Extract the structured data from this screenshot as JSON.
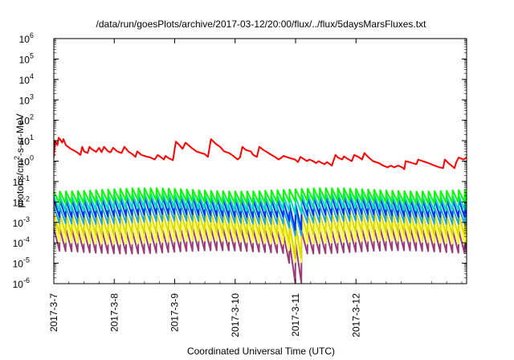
{
  "chart_data": {
    "type": "line",
    "title": "/data/run/goesPlots/archive/2017-03-12/20:00/flux/../flux/5daysMarsFluxes.txt",
    "xlabel": "Coordinated Universal Time (UTC)",
    "ylabel": {
      "prefix": "protons/cm",
      "sup": "2",
      "suffix": "-s-sr-MeV"
    },
    "y_scale": "log",
    "ylim": [
      1e-06,
      1000000.0
    ],
    "y_ticks": [
      {
        "value": -6,
        "base": "10",
        "exp": "-6"
      },
      {
        "value": -5,
        "base": "10",
        "exp": "-5"
      },
      {
        "value": -4,
        "base": "10",
        "exp": "-4"
      },
      {
        "value": -3,
        "base": "10",
        "exp": "-3"
      },
      {
        "value": -2,
        "base": "10",
        "exp": "-2"
      },
      {
        "value": -1,
        "base": "10",
        "exp": "-1"
      },
      {
        "value": 0,
        "base": "10",
        "exp": "0"
      },
      {
        "value": 1,
        "base": "10",
        "exp": "1"
      },
      {
        "value": 2,
        "base": "10",
        "exp": "2"
      },
      {
        "value": 3,
        "base": "10",
        "exp": "3"
      },
      {
        "value": 4,
        "base": "10",
        "exp": "4"
      },
      {
        "value": 5,
        "base": "10",
        "exp": "5"
      },
      {
        "value": 6,
        "base": "10",
        "exp": "6"
      }
    ],
    "x_range_days": [
      0,
      6.83
    ],
    "x_ticks": [
      {
        "day": 0,
        "label": "2017-3-7"
      },
      {
        "day": 1,
        "label": "2017-3-8"
      },
      {
        "day": 2,
        "label": "2017-3-9"
      },
      {
        "day": 3,
        "label": "2017-3-10"
      },
      {
        "day": 4,
        "label": "2017-3-11"
      },
      {
        "day": 5,
        "label": "2017-3-12"
      }
    ],
    "grid": false,
    "legend": "none",
    "series": [
      {
        "color": "#ff0000",
        "points": [
          [
            0.0,
            1.5
          ],
          [
            0.02,
            10
          ],
          [
            0.06,
            6
          ],
          [
            0.08,
            14
          ],
          [
            0.1,
            12
          ],
          [
            0.14,
            8
          ],
          [
            0.16,
            12
          ],
          [
            0.2,
            6
          ],
          [
            0.28,
            4
          ],
          [
            0.36,
            3
          ],
          [
            0.4,
            2.5
          ],
          [
            0.44,
            2
          ],
          [
            0.47,
            5
          ],
          [
            0.5,
            3
          ],
          [
            0.56,
            2.5
          ],
          [
            0.59,
            5
          ],
          [
            0.62,
            4
          ],
          [
            0.7,
            2.8
          ],
          [
            0.75,
            4.5
          ],
          [
            0.79,
            2.7
          ],
          [
            0.83,
            5
          ],
          [
            0.9,
            3
          ],
          [
            0.94,
            2.7
          ],
          [
            0.98,
            4.5
          ],
          [
            1.05,
            3
          ],
          [
            1.12,
            2.5
          ],
          [
            1.17,
            5
          ],
          [
            1.23,
            3
          ],
          [
            1.3,
            2.2
          ],
          [
            1.35,
            1.6
          ],
          [
            1.38,
            3
          ],
          [
            1.45,
            2
          ],
          [
            1.52,
            1.7
          ],
          [
            1.6,
            1.5
          ],
          [
            1.67,
            1.2
          ],
          [
            1.72,
            2
          ],
          [
            1.78,
            1.5
          ],
          [
            1.82,
            1.2
          ],
          [
            1.85,
            1.8
          ],
          [
            1.9,
            1.4
          ],
          [
            1.97,
            1.1
          ],
          [
            2.02,
            9
          ],
          [
            2.08,
            6
          ],
          [
            2.13,
            4
          ],
          [
            2.18,
            8
          ],
          [
            2.23,
            6
          ],
          [
            2.3,
            4
          ],
          [
            2.36,
            3
          ],
          [
            2.42,
            2.6
          ],
          [
            2.5,
            2.2
          ],
          [
            2.55,
            1.6
          ],
          [
            2.6,
            12
          ],
          [
            2.68,
            7
          ],
          [
            2.75,
            5
          ],
          [
            2.82,
            3
          ],
          [
            2.9,
            2.5
          ],
          [
            2.97,
            1.8
          ],
          [
            3.04,
            1.2
          ],
          [
            3.08,
            1.5
          ],
          [
            3.12,
            5
          ],
          [
            3.18,
            3.5
          ],
          [
            3.26,
            3
          ],
          [
            3.3,
            2
          ],
          [
            3.36,
            1.6
          ],
          [
            3.4,
            5
          ],
          [
            3.47,
            3.5
          ],
          [
            3.55,
            2.5
          ],
          [
            3.6,
            2
          ],
          [
            3.66,
            1.6
          ],
          [
            3.72,
            1.2
          ],
          [
            3.77,
            1.5
          ],
          [
            3.8,
            1.8
          ],
          [
            3.85,
            1.6
          ],
          [
            3.91,
            1.4
          ],
          [
            3.99,
            1.2
          ],
          [
            4.04,
            0.9
          ],
          [
            4.08,
            1.6
          ],
          [
            4.13,
            1.3
          ],
          [
            4.19,
            1
          ],
          [
            4.23,
            1.2
          ],
          [
            4.29,
            1
          ],
          [
            4.34,
            0.8
          ],
          [
            4.38,
            1
          ],
          [
            4.44,
            0.8
          ],
          [
            4.48,
            0.7
          ],
          [
            4.52,
            0.9
          ],
          [
            4.6,
            0.6
          ],
          [
            4.66,
            2
          ],
          [
            4.7,
            1.5
          ],
          [
            4.77,
            1.2
          ],
          [
            4.8,
            1.7
          ],
          [
            4.86,
            1.3
          ],
          [
            4.93,
            1
          ],
          [
            4.97,
            2
          ],
          [
            5.04,
            1.6
          ],
          [
            5.1,
            1.2
          ],
          [
            5.14,
            2.5
          ],
          [
            5.2,
            1.6
          ],
          [
            5.28,
            1
          ],
          [
            5.38,
            0.8
          ],
          [
            5.45,
            0.6
          ],
          [
            5.52,
            0.5
          ],
          [
            5.58,
            0.6
          ],
          [
            5.63,
            0.5
          ],
          [
            5.7,
            0.6
          ],
          [
            5.76,
            0.5
          ],
          [
            5.8,
            0.4
          ],
          [
            5.82,
            1
          ],
          [
            5.88,
            0.9
          ],
          [
            6.0,
            0.7
          ],
          [
            6.03,
            1.2
          ],
          [
            6.1,
            1
          ],
          [
            6.2,
            0.8
          ],
          [
            6.3,
            0.6
          ],
          [
            6.38,
            0.5
          ],
          [
            6.44,
            0.45
          ],
          [
            6.47,
            1.2
          ],
          [
            6.53,
            0.8
          ],
          [
            6.58,
            0.6
          ],
          [
            6.63,
            0.45
          ],
          [
            6.66,
            0.9
          ],
          [
            6.7,
            1.5
          ],
          [
            6.78,
            1.2
          ],
          [
            6.83,
            1.5
          ]
        ]
      },
      {
        "color": "#00ff00",
        "base": -1.7,
        "amp": 0.6,
        "dip": 0
      },
      {
        "color": "#00ddbb",
        "base": -2.0,
        "amp": 0.7,
        "dip": 0.3
      },
      {
        "color": "#0033ff",
        "base": -2.25,
        "amp": 0.85,
        "dip": 0.9
      },
      {
        "color": "#1faacc",
        "base": -2.6,
        "amp": 0.8,
        "dip": 0.8
      },
      {
        "color": "#ddd800",
        "base": -3.05,
        "amp": 1.0,
        "dip": 1.5
      },
      {
        "color": "#ffff33",
        "base": -3.45,
        "amp": 1.05,
        "dip": 1.2
      },
      {
        "color": "#9a3b78",
        "base": -3.9,
        "amp": 1.1,
        "dip": 1.9
      }
    ],
    "sawtooth_period_days": 0.1,
    "dropout_day": 4.0
  }
}
